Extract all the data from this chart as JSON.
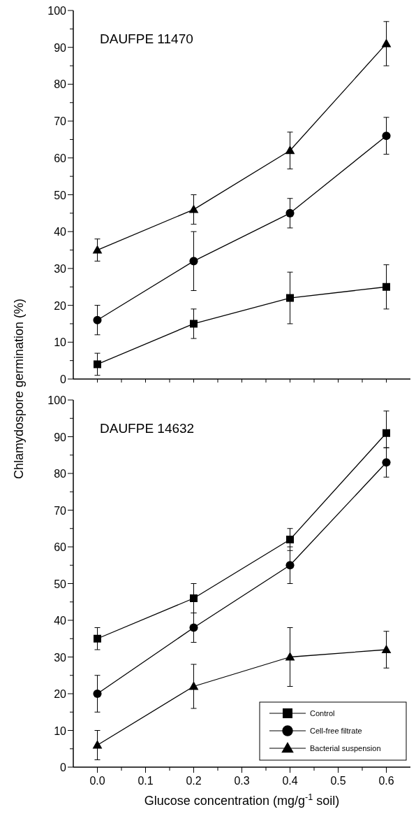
{
  "chart_data": [
    {
      "type": "line",
      "title": "DAUFPE 11470",
      "ylabel": "Chlamydospore germination (%)",
      "x": [
        0,
        0.2,
        0.4,
        0.6
      ],
      "xlim": [
        -0.05,
        0.65
      ],
      "xticks": [
        {
          "value": 0,
          "label": null
        },
        {
          "value": 0.05,
          "label": null
        },
        {
          "value": 0.1,
          "label": null
        },
        {
          "value": 0.15,
          "label": null
        },
        {
          "value": 0.2,
          "label": null
        },
        {
          "value": 0.25,
          "label": null
        },
        {
          "value": 0.3,
          "label": null
        },
        {
          "value": 0.35,
          "label": null
        },
        {
          "value": 0.4,
          "label": null
        },
        {
          "value": 0.45,
          "label": null
        },
        {
          "value": 0.5,
          "label": null
        },
        {
          "value": 0.55,
          "label": null
        },
        {
          "value": 0.6,
          "label": null
        }
      ],
      "ylim": [
        0,
        100
      ],
      "yticks": [
        0,
        {
          "value": 5,
          "label": null
        },
        10,
        {
          "value": 15,
          "label": null
        },
        20,
        {
          "value": 25,
          "label": null
        },
        30,
        {
          "value": 35,
          "label": null
        },
        40,
        {
          "value": 45,
          "label": null
        },
        50,
        {
          "value": 55,
          "label": null
        },
        60,
        {
          "value": 65,
          "label": null
        },
        70,
        {
          "value": 75,
          "label": null
        },
        80,
        {
          "value": 85,
          "label": null
        },
        90,
        {
          "value": 95,
          "label": null
        },
        100
      ],
      "tick_labels": "y",
      "grid": false,
      "legend": false,
      "line_style": "solid",
      "series": [
        {
          "color": "#000000",
          "marker": "square",
          "values": [
            4,
            15,
            22,
            25
          ],
          "errors": [
            [
              1,
              7
            ],
            [
              11,
              19
            ],
            [
              15,
              29
            ],
            [
              19,
              31
            ]
          ]
        },
        {
          "color": "#000000",
          "marker": "circle",
          "values": [
            16,
            32,
            45,
            66
          ],
          "errors": [
            [
              12,
              20
            ],
            [
              24,
              40
            ],
            [
              41,
              49
            ],
            [
              61,
              71
            ]
          ]
        },
        {
          "color": "#000000",
          "marker": "triangle",
          "values": [
            35,
            46,
            62,
            91
          ],
          "errors": [
            [
              32,
              38
            ],
            [
              42,
              50
            ],
            [
              57,
              67
            ],
            [
              85,
              97
            ]
          ]
        }
      ]
    },
    {
      "type": "line",
      "title": "DAUFPE 14632",
      "xlabel": "Glucose concentration (mg/g$^{-1}$ soil)",
      "x": [
        0,
        0.2,
        0.4,
        0.6
      ],
      "xlim": [
        -0.05,
        0.65
      ],
      "xticks": [
        {
          "value": 0,
          "label": "0.0"
        },
        {
          "value": 0.05,
          "label": null
        },
        0.1,
        {
          "value": 0.15,
          "label": null
        },
        0.2,
        {
          "value": 0.25,
          "label": null
        },
        0.3,
        {
          "value": 0.35,
          "label": null
        },
        0.4,
        {
          "value": 0.45,
          "label": null
        },
        0.5,
        {
          "value": 0.55,
          "label": null
        },
        0.6
      ],
      "ylim": [
        0,
        100
      ],
      "yticks": [
        0,
        {
          "value": 5,
          "label": null
        },
        10,
        {
          "value": 15,
          "label": null
        },
        20,
        {
          "value": 25,
          "label": null
        },
        30,
        {
          "value": 35,
          "label": null
        },
        40,
        {
          "value": 45,
          "label": null
        },
        50,
        {
          "value": 55,
          "label": null
        },
        60,
        {
          "value": 65,
          "label": null
        },
        70,
        {
          "value": 75,
          "label": null
        },
        80,
        {
          "value": 85,
          "label": null
        },
        90,
        {
          "value": 95,
          "label": null
        },
        100
      ],
      "grid": false,
      "legend": "bottom right",
      "line_style": "solid",
      "series": [
        {
          "name": "Control",
          "color": "#000000",
          "marker": "square",
          "values": [
            35,
            46,
            62,
            91
          ],
          "errors": [
            [
              32,
              38
            ],
            [
              42,
              50
            ],
            [
              59,
              65
            ],
            [
              87,
              97
            ]
          ]
        },
        {
          "name": "Cell-free filtrate",
          "color": "#000000",
          "marker": "circle",
          "values": [
            20,
            38,
            55,
            83
          ],
          "errors": [
            [
              15,
              25
            ],
            [
              34,
              42
            ],
            [
              50,
              60
            ],
            [
              79,
              87
            ]
          ]
        },
        {
          "name": "Bacterial suspension",
          "color": "#000000",
          "marker": "triangle",
          "values": [
            6,
            22,
            30,
            32
          ],
          "errors": [
            [
              2,
              10
            ],
            [
              16,
              28
            ],
            [
              22,
              38
            ],
            [
              27,
              37
            ]
          ]
        }
      ]
    }
  ]
}
